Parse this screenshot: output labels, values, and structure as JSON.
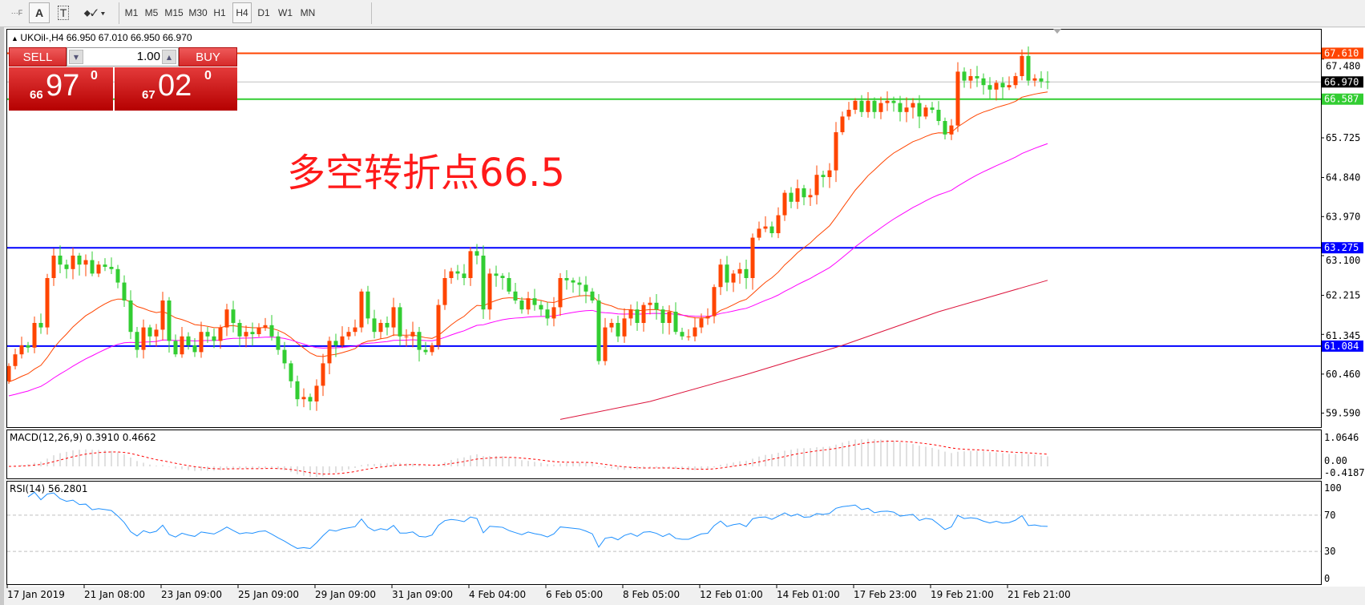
{
  "toolbar": {
    "tools": [
      {
        "name": "fibonacci-tool-icon",
        "glyph": "F"
      },
      {
        "name": "text-tool-icon",
        "glyph": "A"
      },
      {
        "name": "text-label-tool-icon",
        "glyph": "T"
      },
      {
        "name": "arrows-tool-icon",
        "glyph": "⬥"
      }
    ],
    "timeframes": [
      "M1",
      "M5",
      "M15",
      "M30",
      "H1",
      "H4",
      "D1",
      "W1",
      "MN"
    ],
    "selected_timeframe": "H4"
  },
  "chart": {
    "title": "UKOil-,H4  66.950 67.010 66.950 66.970",
    "annotation": "多空转折点66.5",
    "trade_panel": {
      "sell_label": "SELL",
      "buy_label": "BUY",
      "lot": "1.00",
      "sell_price": {
        "prefix": "66",
        "big": "97",
        "sup": "0"
      },
      "buy_price": {
        "prefix": "67",
        "big": "02",
        "sup": "0"
      }
    }
  },
  "chart_data": {
    "type": "candlestick",
    "symbol": "UKOil-",
    "timeframe": "H4",
    "colors": {
      "up": "#ff4500",
      "down": "#32cd32",
      "ma_fast": "#ff4500",
      "ma_mid": "#ff00ff",
      "ma_slow": "#dc143c",
      "macd_hist": "#c0c0c0",
      "macd_signal": "#ff0000",
      "rsi": "#1e90ff"
    },
    "closes": [
      60.64,
      60.9,
      61.1,
      61.05,
      61.6,
      61.5,
      62.6,
      63.1,
      62.9,
      62.8,
      63.1,
      62.9,
      63.0,
      62.7,
      62.9,
      62.85,
      62.8,
      62.5,
      62.1,
      61.4,
      61.0,
      61.5,
      61.3,
      61.45,
      62.1,
      61.2,
      60.9,
      61.3,
      61.1,
      60.95,
      61.4,
      61.3,
      61.2,
      61.5,
      61.9,
      61.6,
      61.3,
      61.4,
      61.35,
      61.5,
      61.55,
      61.3,
      61.0,
      60.7,
      60.3,
      59.9,
      59.95,
      59.85,
      60.2,
      60.7,
      61.2,
      61.1,
      61.3,
      61.4,
      61.5,
      62.3,
      61.7,
      61.4,
      61.6,
      61.5,
      61.95,
      61.3,
      61.3,
      61.4,
      61.0,
      60.95,
      61.1,
      62.0,
      62.6,
      62.75,
      62.7,
      62.6,
      63.2,
      63.1,
      61.9,
      62.7,
      62.65,
      62.6,
      62.3,
      62.1,
      61.9,
      62.15,
      62.0,
      61.9,
      61.7,
      61.95,
      62.6,
      62.55,
      62.5,
      62.45,
      62.3,
      62.1,
      60.75,
      61.5,
      61.6,
      61.3,
      61.7,
      61.9,
      61.6,
      62.0,
      62.05,
      61.9,
      61.6,
      61.85,
      61.4,
      61.3,
      61.3,
      61.5,
      61.7,
      61.75,
      62.4,
      62.9,
      62.5,
      62.7,
      62.8,
      62.6,
      63.5,
      63.7,
      63.75,
      63.6,
      64.0,
      64.5,
      64.3,
      64.6,
      64.4,
      64.45,
      64.9,
      64.85,
      65.0,
      65.85,
      66.2,
      66.35,
      66.55,
      66.3,
      66.55,
      66.3,
      66.5,
      66.55,
      66.5,
      66.3,
      66.4,
      66.5,
      66.2,
      66.4,
      66.35,
      66.1,
      65.8,
      66.0,
      67.2,
      67.0,
      67.1,
      67.05,
      66.9,
      66.8,
      66.95,
      66.85,
      66.9,
      67.1,
      67.55,
      67.0,
      67.05,
      66.98,
      66.97
    ],
    "first_open": 60.3,
    "ma_fast": {
      "period": 21,
      "start": 60.25
    },
    "ma_mid": {
      "period": 55,
      "start": 59.95
    },
    "ma_slow_points": [
      [
        86,
        59.45
      ],
      [
        100,
        59.85
      ],
      [
        115,
        60.45
      ],
      [
        130,
        61.1
      ],
      [
        145,
        61.85
      ],
      [
        162,
        62.55
      ]
    ],
    "ylim": [
      59.3,
      68.15
    ],
    "y_ticks": [
      "67.480",
      "65.725",
      "64.840",
      "63.970",
      "63.100",
      "62.215",
      "61.345",
      "60.460",
      "59.590"
    ],
    "horizontal_lines": [
      {
        "price": 67.61,
        "label": "67.610",
        "color": "#ff4500"
      },
      {
        "price": 66.97,
        "label": "66.970",
        "color": "#c0c0c0",
        "label_bg": "#000000"
      },
      {
        "price": 66.587,
        "label": "66.587",
        "color": "#32cd32"
      },
      {
        "price": 63.275,
        "label": "63.275",
        "color": "#0000ff"
      },
      {
        "price": 61.084,
        "label": "61.084",
        "color": "#0000ff"
      }
    ],
    "x_tick_labels": [
      "17 Jan 2019",
      "21 Jan 08:00",
      "23 Jan 09:00",
      "25 Jan 09:00",
      "29 Jan 09:00",
      "31 Jan 09:00",
      "4 Feb 04:00",
      "6 Feb 05:00",
      "8 Feb 05:00",
      "12 Feb 01:00",
      "14 Feb 01:00",
      "17 Feb 23:00",
      "19 Feb 21:00",
      "21 Feb 21:00"
    ],
    "macd": {
      "label": "MACD(12,26,9) 0.3910 0.4662",
      "fast": 12,
      "slow": 26,
      "signal": 9,
      "ticks": [
        "1.0646",
        "0.00",
        "-0.4187"
      ],
      "ylim": [
        -0.4187,
        1.0646
      ]
    },
    "rsi": {
      "label": "RSI(14) 56.2801",
      "period": 14,
      "ticks": [
        "100",
        "70",
        "30",
        "0"
      ],
      "levels": [
        70,
        30
      ]
    }
  }
}
